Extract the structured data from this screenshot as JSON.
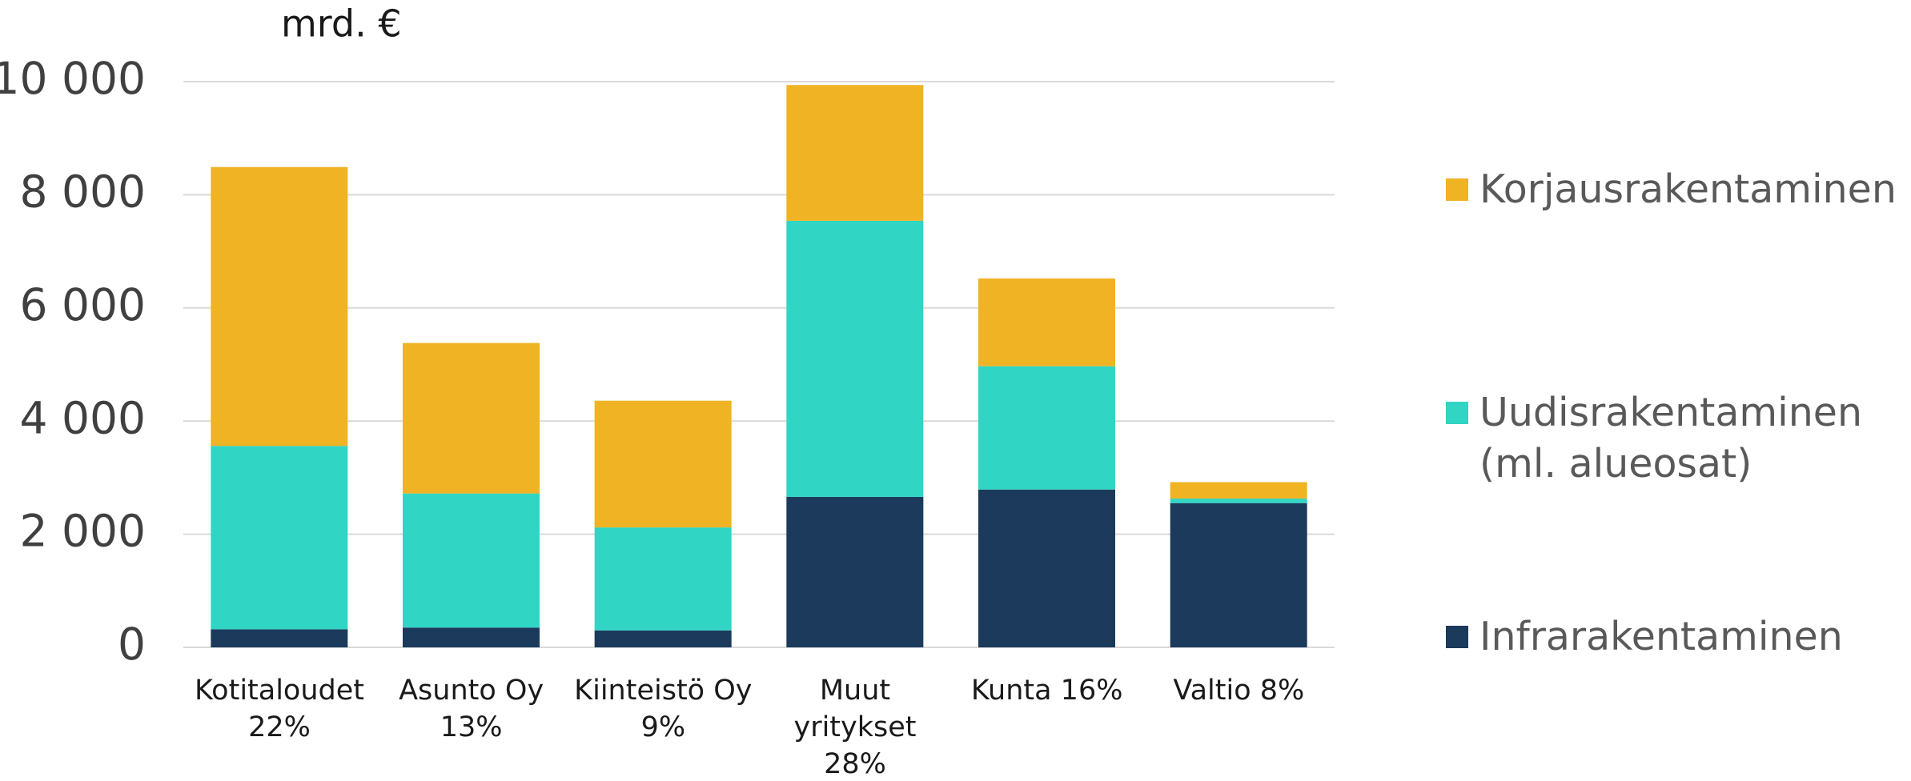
{
  "chart_data": {
    "type": "bar",
    "stacked": true,
    "title": "mrd. €",
    "categories": [
      "Kotitaloudet\n22%",
      "Asunto Oy\n13%",
      "Kiinteistö Oy\n9%",
      "Muut\nyritykset\n28%",
      "Kunta 16%",
      "Valtio 8%"
    ],
    "series": [
      {
        "name": "Infrarakentaminen",
        "color": "#1b3a5c",
        "values": [
          320,
          350,
          300,
          2660,
          2790,
          2550
        ]
      },
      {
        "name": "Uudisrakentaminen\n(ml. alueosat)",
        "color": "#31d5c4",
        "values": [
          3240,
          2370,
          1820,
          4880,
          2180,
          80
        ]
      },
      {
        "name": "Korjausrakentaminen",
        "color": "#f0b323",
        "values": [
          4930,
          2660,
          2240,
          2400,
          1550,
          290
        ]
      }
    ],
    "ylim": [
      0,
      10000
    ],
    "yticks": [
      0,
      {
        "value": 2000,
        "label": "2 000"
      },
      {
        "value": 4000,
        "label": "4 000"
      },
      {
        "value": 6000,
        "label": "6 000"
      },
      {
        "value": 8000,
        "label": "8 000"
      },
      {
        "value": 10000,
        "label": "10 000"
      }
    ],
    "grid": true,
    "legend": "right"
  }
}
